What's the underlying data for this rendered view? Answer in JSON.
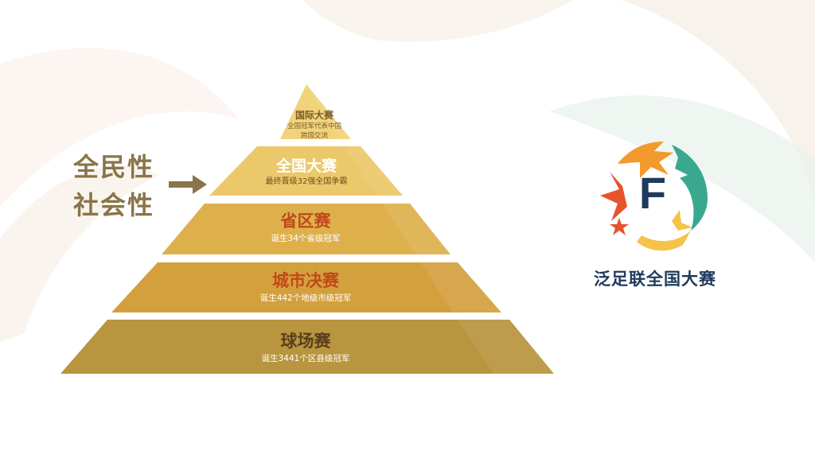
{
  "side_labels": [
    "全民性",
    "社会性"
  ],
  "pyramid": {
    "tiers": [
      {
        "title": "国际大赛",
        "subtitle_lines": [
          "全国冠军代表中国",
          "跨国交流"
        ]
      },
      {
        "title": "全国大赛",
        "subtitle_lines": [
          "最终晋级32强全国争霸"
        ]
      },
      {
        "title": "省区赛",
        "subtitle_lines": [
          "诞生34个省级冠军"
        ]
      },
      {
        "title": "城市决赛",
        "subtitle_lines": [
          "诞生442个地级市级冠军"
        ]
      },
      {
        "title": "球场赛",
        "subtitle_lines": [
          "诞生3441个区县级冠军"
        ]
      }
    ]
  },
  "brand": {
    "logo_letter": "F",
    "name": "泛足联全国大赛"
  },
  "colors": {
    "tier_fills": [
      "#f1d37a",
      "#ebc86a",
      "#deb04c",
      "#d4a03e",
      "#b8953e"
    ],
    "tier_title_colors": [
      "#7a5c2a",
      "#ffffff",
      "#c0491a",
      "#c0491a",
      "#5a3e1c"
    ],
    "label_color": "#8a7448",
    "logo_navy": "#1e3a5c",
    "logo_orange": "#f29a2e",
    "logo_red": "#e6532d",
    "logo_teal": "#3aa88e",
    "logo_yellow": "#f5c24a"
  }
}
